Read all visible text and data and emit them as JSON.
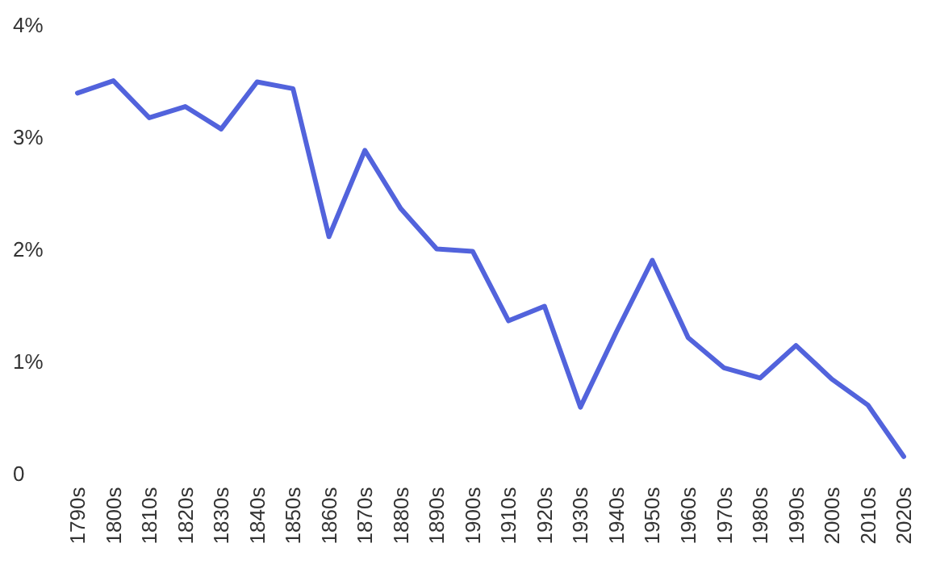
{
  "chart_data": {
    "type": "line",
    "categories": [
      "1790s",
      "1800s",
      "1810s",
      "1820s",
      "1830s",
      "1840s",
      "1850s",
      "1860s",
      "1870s",
      "1880s",
      "1890s",
      "1900s",
      "1910s",
      "1920s",
      "1930s",
      "1940s",
      "1950s",
      "1960s",
      "1970s",
      "1980s",
      "1990s",
      "2000s",
      "2010s",
      "2020s"
    ],
    "series": [
      {
        "color": "#5263dc",
        "values": [
          3.4,
          3.51,
          3.18,
          3.28,
          3.08,
          3.5,
          3.44,
          2.12,
          2.89,
          2.37,
          2.01,
          1.99,
          1.37,
          1.5,
          0.6,
          1.27,
          1.91,
          1.22,
          0.95,
          0.86,
          1.15,
          0.85,
          0.62,
          0.16
        ]
      }
    ],
    "ylim": [
      0,
      4
    ],
    "yticks": [
      {
        "value": 0,
        "label": "0"
      },
      {
        "value": 1,
        "label": "1%"
      },
      {
        "value": 2,
        "label": "2%"
      },
      {
        "value": 3,
        "label": "3%"
      },
      {
        "value": 4,
        "label": "4%"
      }
    ],
    "grid": false,
    "legend": false,
    "marker": "none",
    "line_style": "solid"
  }
}
